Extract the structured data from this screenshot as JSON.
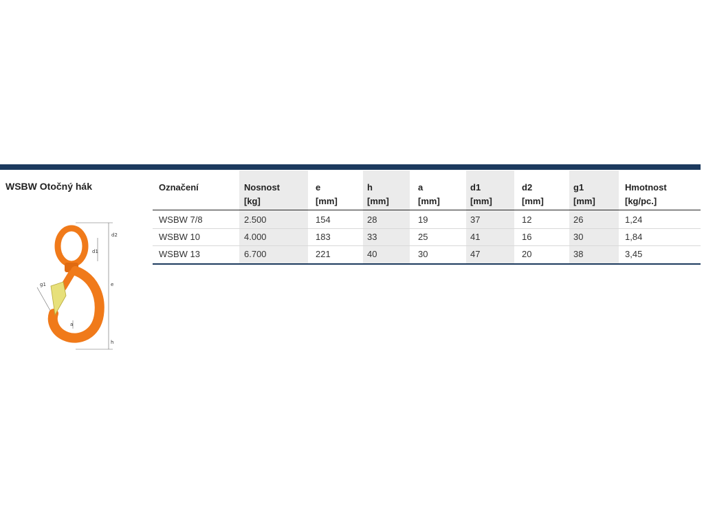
{
  "product_title": "WSBW Otočný hák",
  "table": {
    "headers": [
      {
        "line1": "Označení",
        "line2": ""
      },
      {
        "line1": "Nosnost",
        "line2": "[kg]"
      },
      {
        "line1": "e",
        "line2": "[mm]"
      },
      {
        "line1": "h",
        "line2": "[mm]"
      },
      {
        "line1": "a",
        "line2": "[mm]"
      },
      {
        "line1": "d1",
        "line2": "[mm]"
      },
      {
        "line1": "d2",
        "line2": "[mm]"
      },
      {
        "line1": "g1",
        "line2": "[mm]"
      },
      {
        "line1": "Hmotnost",
        "line2": "[kg/pc.]"
      }
    ],
    "rows": [
      [
        "WSBW 7/8",
        "2.500",
        "154",
        "28",
        "19",
        "37",
        "12",
        "26",
        "1,24"
      ],
      [
        "WSBW 10",
        "4.000",
        "183",
        "33",
        "25",
        "41",
        "16",
        "30",
        "1,84"
      ],
      [
        "WSBW 13",
        "6.700",
        "221",
        "40",
        "30",
        "47",
        "20",
        "38",
        "3,45"
      ]
    ]
  },
  "diagram_labels": {
    "d2": "d2",
    "d1": "d1",
    "e": "e",
    "g1": "g1",
    "a": "a",
    "h": "h"
  },
  "colors": {
    "accent_bar": "#1c3a5e",
    "hook_orange": "#f07a1a",
    "shade": "#ebebeb"
  }
}
